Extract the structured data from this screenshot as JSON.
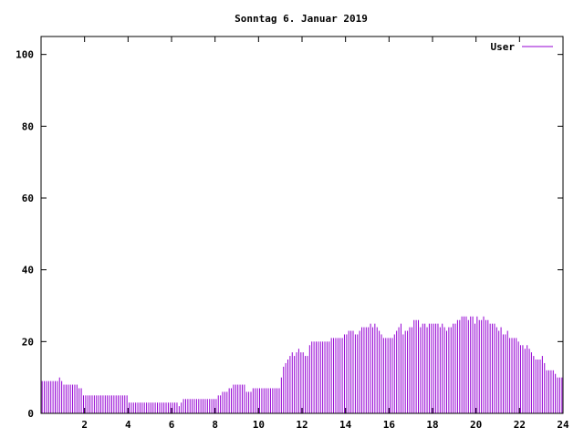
{
  "chart_data": {
    "type": "bar",
    "title": "Sonntag 6. Januar 2019",
    "xlabel": "",
    "ylabel": "",
    "xlim": [
      0,
      24
    ],
    "ylim": [
      0,
      105
    ],
    "x_ticks": [
      2,
      4,
      6,
      8,
      10,
      12,
      14,
      16,
      18,
      20,
      22,
      24
    ],
    "y_ticks": [
      0,
      20,
      40,
      60,
      80,
      100
    ],
    "grid": false,
    "legend_position": "top-right",
    "series": [
      {
        "name": "User",
        "color": "#9400d3",
        "x_start": 0,
        "x_step": 0.1,
        "values": [
          9,
          9,
          9,
          9,
          9,
          9,
          9,
          9,
          10,
          9,
          8,
          8,
          8,
          8,
          8,
          8,
          8,
          7,
          7,
          5,
          5,
          5,
          5,
          5,
          5,
          5,
          5,
          5,
          5,
          5,
          5,
          5,
          5,
          5,
          5,
          5,
          5,
          5,
          5,
          5,
          3,
          3,
          3,
          3,
          3,
          3,
          3,
          3,
          3,
          3,
          3,
          3,
          3,
          3,
          3,
          3,
          3,
          3,
          3,
          3,
          3,
          3,
          3,
          2,
          3,
          4,
          4,
          4,
          4,
          4,
          4,
          4,
          4,
          4,
          4,
          4,
          4,
          4,
          4,
          4,
          4,
          5,
          5,
          6,
          6,
          6,
          7,
          7,
          8,
          8,
          8,
          8,
          8,
          8,
          6,
          6,
          6,
          7,
          7,
          7,
          7,
          7,
          7,
          7,
          7,
          7,
          7,
          7,
          7,
          7,
          10,
          13,
          14,
          15,
          16,
          17,
          16,
          17,
          18,
          17,
          17,
          16,
          16,
          19,
          20,
          20,
          20,
          20,
          20,
          20,
          20,
          20,
          20,
          21,
          21,
          21,
          21,
          21,
          21,
          22,
          22,
          23,
          23,
          23,
          22,
          22,
          23,
          24,
          24,
          24,
          24,
          25,
          24,
          25,
          24,
          23,
          22,
          21,
          21,
          21,
          21,
          21,
          22,
          23,
          24,
          25,
          22,
          23,
          23,
          24,
          24,
          26,
          26,
          26,
          24,
          25,
          25,
          24,
          25,
          25,
          25,
          25,
          25,
          24,
          25,
          24,
          23,
          24,
          24,
          25,
          25,
          26,
          26,
          27,
          27,
          27,
          26,
          27,
          27,
          25,
          27,
          26,
          26,
          27,
          26,
          26,
          25,
          25,
          25,
          24,
          23,
          24,
          22,
          22,
          23,
          21,
          21,
          21,
          21,
          20,
          19,
          19,
          18,
          19,
          18,
          17,
          16,
          15,
          15,
          15,
          16,
          14,
          12,
          12,
          12,
          12,
          11,
          10,
          10,
          10
        ]
      }
    ]
  }
}
